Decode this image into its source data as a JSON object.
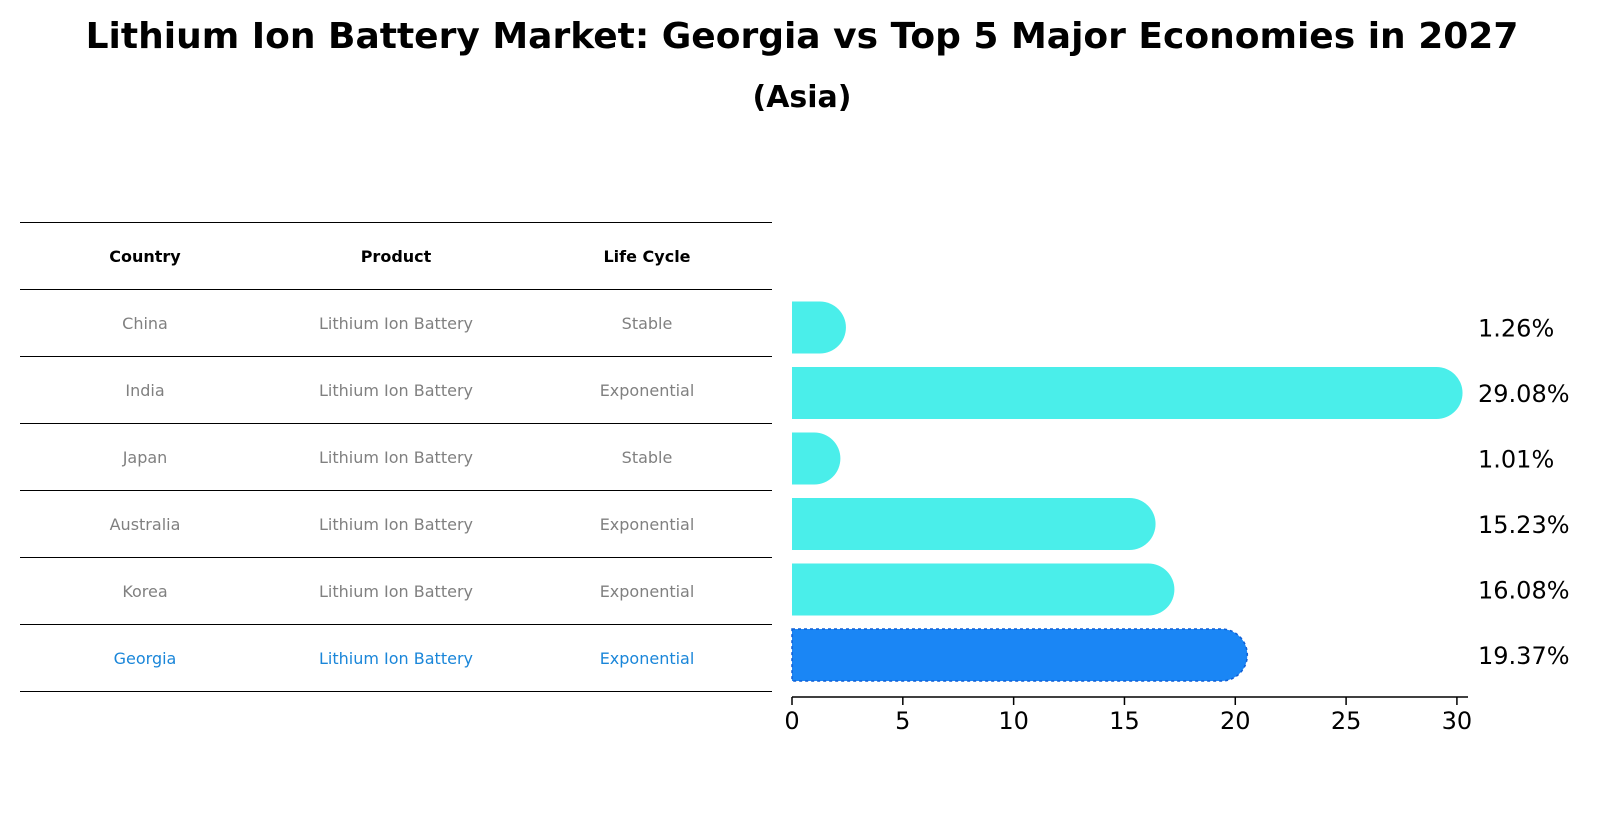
{
  "title": "Lithium Ion Battery Market: Georgia vs Top 5 Major Economies in 2027",
  "subtitle": "(Asia)",
  "table": {
    "headers": [
      "Country",
      "Product",
      "Life Cycle"
    ],
    "rows": [
      [
        "China",
        "Lithium Ion Battery",
        "Stable"
      ],
      [
        "India",
        "Lithium Ion Battery",
        "Exponential"
      ],
      [
        "Japan",
        "Lithium Ion Battery",
        "Stable"
      ],
      [
        "Australia",
        "Lithium Ion Battery",
        "Exponential"
      ],
      [
        "Korea",
        "Lithium Ion Battery",
        "Exponential"
      ],
      [
        "Georgia",
        "Lithium Ion Battery",
        "Exponential"
      ]
    ]
  },
  "chart_data": {
    "type": "bar",
    "orientation": "horizontal",
    "categories": [
      "China",
      "India",
      "Japan",
      "Australia",
      "Korea",
      "Georgia"
    ],
    "values": [
      1.26,
      29.08,
      1.01,
      15.23,
      16.08,
      19.37
    ],
    "value_labels": [
      "1.26%",
      "29.08%",
      "1.01%",
      "15.23%",
      "16.08%",
      "19.37%"
    ],
    "xlim": [
      0,
      30.5
    ],
    "xticks": [
      0,
      5,
      10,
      15,
      20,
      25,
      30
    ],
    "xlabel": "",
    "ylabel": "",
    "grid": false,
    "colors": {
      "default": "#4aeeea",
      "highlight": "#1a86f5"
    },
    "highlight_category": "Georgia"
  }
}
